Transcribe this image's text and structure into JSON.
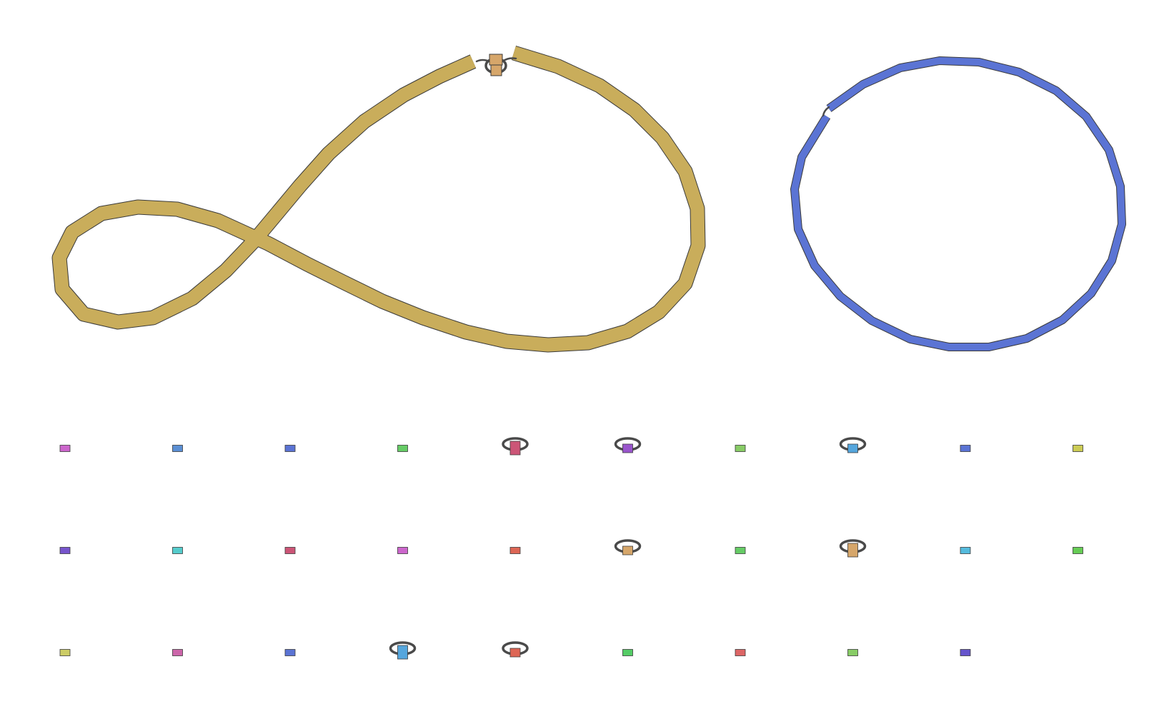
{
  "graph": {
    "background": "#ffffff",
    "outline_color": "#3a3a3a",
    "edge_color": "#4a4a4a",
    "components": [
      {
        "id": "figure-eight-contig",
        "color": "#c9ad5b",
        "shape": "figure-eight",
        "self_loop": true,
        "junction_color": "#d6a66a"
      },
      {
        "id": "ring-contig",
        "color": "#5b74d4",
        "shape": "ring",
        "self_loop": false
      }
    ],
    "small_nodes": [
      {
        "color": "#cc66cc",
        "loop": false
      },
      {
        "color": "#5b8fd4",
        "loop": false
      },
      {
        "color": "#5b74d4",
        "loop": false
      },
      {
        "color": "#66cc66",
        "loop": false
      },
      {
        "color": "#cc5577",
        "loop": true,
        "tall": true
      },
      {
        "color": "#9955cc",
        "loop": true
      },
      {
        "color": "#88cc66",
        "loop": false
      },
      {
        "color": "#55a6dd",
        "loop": true
      },
      {
        "color": "#5b74d4",
        "loop": false
      },
      {
        "color": "#cccc55",
        "loop": false
      },
      {
        "color": "#7755cc",
        "loop": false
      },
      {
        "color": "#55cccc",
        "loop": false
      },
      {
        "color": "#cc5577",
        "loop": false
      },
      {
        "color": "#cc66cc",
        "loop": false
      },
      {
        "color": "#dd6655",
        "loop": false
      },
      {
        "color": "#d6a66a",
        "loop": true
      },
      {
        "color": "#66cc66",
        "loop": false
      },
      {
        "color": "#d6a66a",
        "loop": true,
        "tall": true
      },
      {
        "color": "#55bbdd",
        "loop": false
      },
      {
        "color": "#66cc55",
        "loop": false
      },
      {
        "color": "#cccc66",
        "loop": false
      },
      {
        "color": "#cc66aa",
        "loop": false
      },
      {
        "color": "#5b74d4",
        "loop": false
      },
      {
        "color": "#55a6dd",
        "loop": true,
        "tall": true
      },
      {
        "color": "#dd6655",
        "loop": true
      },
      {
        "color": "#55cc66",
        "loop": false
      },
      {
        "color": "#dd6666",
        "loop": false
      },
      {
        "color": "#88cc66",
        "loop": false
      },
      {
        "color": "#6655cc",
        "loop": false
      }
    ]
  }
}
